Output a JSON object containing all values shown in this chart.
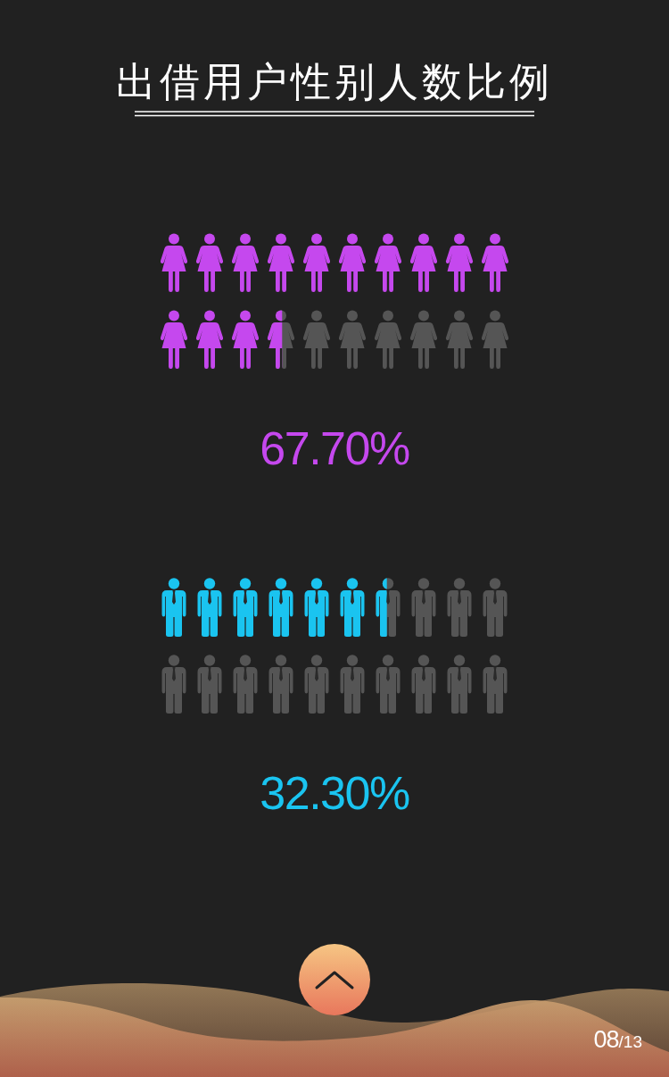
{
  "chart_data": {
    "type": "other",
    "title": "出借用户性别人数比例",
    "categories": [
      null,
      null
    ],
    "values": [
      67.7,
      32.3
    ],
    "colors": [
      "#c548ee",
      "#1ac4f0"
    ],
    "value_labels": [
      "67.70%",
      "32.30%"
    ],
    "annotations": [
      "08/13"
    ]
  }
}
